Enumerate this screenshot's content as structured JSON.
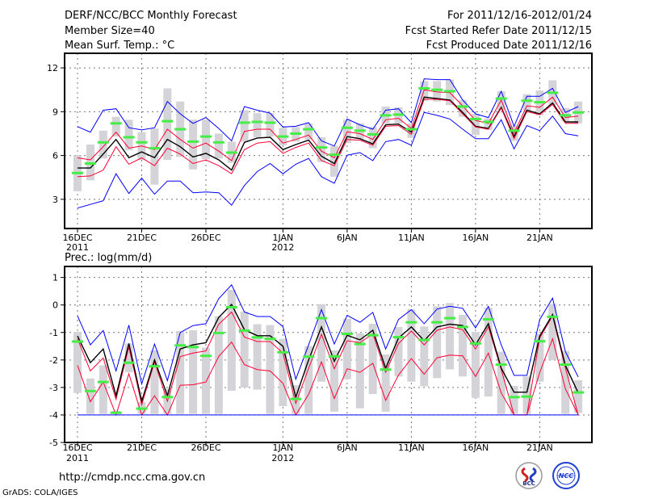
{
  "header": {
    "title": "DERF/NCC/BCC Monthly Forecast",
    "member_size": "Member Size=40",
    "variable_top": "Mean Surf. Temp.: °C",
    "forecast_period": "For 2011/12/16-2012/01/24",
    "start_date": "Fcst Started Refer Date 2011/12/15",
    "produced_date": "Fcst Produced Date 2011/12/16"
  },
  "footer": {
    "url": "http://cmdp.ncc.cma.gov.cn",
    "credit": "GrADS: COLA/IGES",
    "logo_bcc": "BCC",
    "logo_ncc": "NCC"
  },
  "colors": {
    "envelope": "#0000ff",
    "spread": "#ff0033",
    "mean": "#000000",
    "marker": "#44ee44",
    "box": "#d4d4d8"
  },
  "chart_data": [
    {
      "type": "line",
      "title": "Mean Surf. Temp.: °C",
      "ylim": [
        1,
        13
      ],
      "yticks": [
        3,
        6,
        9,
        12
      ],
      "ytick_labels": [
        "3",
        "6",
        "9",
        "12"
      ],
      "xtick_index": [
        0,
        5,
        10,
        16,
        21,
        26,
        31,
        36
      ],
      "xtick_labels": [
        "16DEC",
        "21DEC",
        "26DEC",
        "1JAN",
        "6JAN",
        "11JAN",
        "16JAN",
        "21JAN"
      ],
      "year_labels": [
        {
          "index": 0,
          "label": "2011"
        },
        {
          "index": 16,
          "label": "2012"
        }
      ],
      "grid": true,
      "series": [
        {
          "name": "max",
          "color": "#0000ff",
          "values": [
            7.98,
            7.6,
            9.1,
            9.2,
            7.9,
            7.75,
            7.9,
            9.7,
            8.85,
            8.2,
            8.6,
            7.85,
            7.0,
            9.35,
            9.1,
            8.9,
            7.95,
            8.0,
            8.25,
            7.0,
            6.65,
            8.5,
            8.1,
            7.8,
            9.1,
            9.2,
            8.25,
            11.25,
            11.2,
            11.2,
            9.8,
            8.85,
            8.6,
            10.4,
            8.0,
            10.05,
            10.05,
            10.6,
            8.95,
            9.35
          ]
        },
        {
          "name": "upper",
          "color": "#ff0033",
          "values": [
            5.84,
            5.7,
            6.6,
            7.6,
            6.5,
            6.65,
            6.4,
            7.8,
            7.1,
            6.5,
            6.85,
            6.3,
            5.65,
            7.65,
            7.8,
            7.8,
            6.85,
            7.1,
            7.4,
            6.3,
            5.84,
            7.62,
            7.5,
            7.1,
            8.45,
            8.55,
            7.85,
            10.5,
            10.35,
            10.3,
            9.4,
            8.4,
            8.2,
            9.8,
            7.55,
            9.4,
            9.3,
            10.0,
            8.6,
            8.7
          ]
        },
        {
          "name": "mean",
          "color": "#000000",
          "values": [
            5.14,
            5.14,
            6.1,
            7.1,
            5.85,
            6.25,
            5.85,
            7.1,
            6.6,
            5.9,
            6.15,
            5.7,
            5.0,
            6.9,
            7.2,
            7.25,
            6.4,
            6.75,
            7.05,
            5.95,
            5.45,
            7.3,
            7.15,
            6.8,
            8.1,
            8.15,
            7.6,
            10.0,
            9.9,
            9.8,
            8.95,
            8.0,
            7.85,
            9.3,
            7.3,
            9.1,
            8.85,
            9.6,
            8.3,
            8.3
          ]
        },
        {
          "name": "lower",
          "color": "#ff0033",
          "values": [
            4.55,
            4.6,
            5.0,
            6.6,
            5.4,
            5.84,
            5.3,
            6.5,
            6.1,
            5.45,
            5.7,
            5.3,
            4.75,
            6.4,
            6.85,
            6.95,
            6.15,
            6.55,
            6.85,
            5.65,
            5.3,
            7.1,
            7.05,
            6.7,
            8.0,
            8.05,
            7.45,
            9.85,
            9.85,
            9.75,
            8.85,
            7.95,
            7.8,
            9.25,
            7.15,
            9.0,
            8.8,
            9.5,
            8.2,
            8.2
          ]
        },
        {
          "name": "min",
          "color": "#0000ff",
          "values": [
            2.4,
            2.65,
            2.9,
            4.75,
            3.4,
            4.45,
            3.35,
            4.25,
            4.25,
            3.45,
            3.5,
            3.45,
            2.6,
            3.95,
            4.9,
            5.45,
            4.75,
            5.4,
            5.8,
            4.55,
            4.1,
            6.02,
            6.2,
            5.65,
            6.95,
            7.1,
            6.7,
            8.95,
            8.75,
            8.5,
            7.8,
            7.15,
            7.15,
            8.45,
            6.45,
            8.05,
            7.7,
            8.7,
            7.5,
            7.35
          ]
        }
      ],
      "markers": [
        4.8,
        5.45,
        6.9,
        8.2,
        7.25,
        6.9,
        6.5,
        8.35,
        7.8,
        6.95,
        7.3,
        6.9,
        6.2,
        8.25,
        8.3,
        8.25,
        7.3,
        7.5,
        7.8,
        6.55,
        6.05,
        7.9,
        7.7,
        7.45,
        8.75,
        8.8,
        7.8,
        10.6,
        10.5,
        10.4,
        9.35,
        8.5,
        8.3,
        9.9,
        7.7,
        9.75,
        9.65,
        10.3,
        8.75,
        8.95
      ],
      "boxes_high": [
        6.0,
        6.75,
        7.7,
        8.65,
        8.45,
        7.6,
        7.85,
        10.6,
        9.7,
        8.45,
        8.45,
        7.5,
        6.95,
        9.1,
        8.9,
        8.9,
        7.9,
        7.95,
        8.2,
        7.25,
        6.65,
        8.45,
        8.2,
        7.95,
        9.35,
        9.3,
        8.2,
        11.1,
        11.1,
        11.2,
        9.8,
        8.85,
        8.55,
        10.4,
        8.05,
        10.2,
        10.45,
        11.15,
        9.25,
        9.7
      ],
      "boxes_low": [
        3.55,
        4.3,
        5.8,
        7.3,
        6.35,
        5.7,
        4.0,
        5.7,
        5.9,
        5.05,
        5.75,
        5.8,
        5.5,
        6.95,
        7.25,
        7.3,
        6.7,
        6.95,
        7.1,
        5.55,
        4.55,
        6.85,
        7.15,
        6.5,
        8.2,
        8.2,
        7.2,
        9.75,
        9.7,
        9.45,
        8.65,
        7.4,
        7.75,
        9.1,
        7.0,
        9.0,
        8.75,
        9.45,
        8.35,
        8.2
      ]
    },
    {
      "type": "line",
      "title": "Prec.: log(mm/d)",
      "ylim": [
        -5,
        1.4
      ],
      "yticks": [
        -5,
        -4,
        -3,
        -2,
        -1,
        0,
        1
      ],
      "ytick_labels": [
        "-5",
        "-4",
        "-3",
        "-2",
        "-1",
        "0",
        "1"
      ],
      "xtick_index": [
        0,
        5,
        10,
        16,
        21,
        26,
        31,
        36
      ],
      "xtick_labels": [
        "16DEC",
        "21DEC",
        "26DEC",
        "1JAN",
        "6JAN",
        "11JAN",
        "16JAN",
        "21JAN"
      ],
      "year_labels": [
        {
          "index": 0,
          "label": "2011"
        },
        {
          "index": 16,
          "label": "2012"
        }
      ],
      "grid": true,
      "series": [
        {
          "name": "max",
          "color": "#0000ff",
          "values": [
            -0.4,
            -1.45,
            -0.93,
            -2.4,
            -0.73,
            -2.87,
            -1.42,
            -2.75,
            -1.0,
            -0.75,
            -0.68,
            0.23,
            0.73,
            -0.26,
            -0.42,
            -0.42,
            -0.78,
            -2.7,
            -1.45,
            -0.17,
            -1.42,
            -0.38,
            -0.63,
            -0.27,
            -1.6,
            -0.53,
            -0.17,
            -0.68,
            -0.15,
            -0.05,
            -0.12,
            -0.83,
            -0.05,
            -1.45,
            -2.56,
            -2.56,
            -0.53,
            0.25,
            -1.7,
            -2.62
          ]
        },
        {
          "name": "upper",
          "color": "#ff0033",
          "values": [
            -1.23,
            -2.4,
            -1.93,
            -3.43,
            -1.53,
            -3.63,
            -2.07,
            -3.5,
            -1.88,
            -1.75,
            -1.67,
            -0.7,
            -0.26,
            -1.17,
            -1.33,
            -1.33,
            -1.75,
            -3.58,
            -2.3,
            -1.07,
            -2.32,
            -1.3,
            -1.37,
            -1.05,
            -2.45,
            -1.4,
            -0.95,
            -1.45,
            -0.92,
            -0.8,
            -0.9,
            -1.6,
            -0.8,
            -2.35,
            -4.0,
            -4.0,
            -1.2,
            -0.4,
            -2.3,
            -4.0
          ]
        },
        {
          "name": "mean",
          "color": "#000000",
          "values": [
            -1.13,
            -2.1,
            -1.6,
            -3.3,
            -1.4,
            -3.5,
            -2.0,
            -3.3,
            -1.6,
            -1.45,
            -1.37,
            -0.45,
            0.02,
            -0.9,
            -1.12,
            -1.12,
            -1.5,
            -3.35,
            -2.0,
            -0.8,
            -2.05,
            -1.1,
            -1.27,
            -0.92,
            -2.3,
            -1.2,
            -0.8,
            -1.3,
            -0.8,
            -0.7,
            -0.75,
            -1.45,
            -0.68,
            -2.3,
            -3.17,
            -3.17,
            -1.13,
            -0.35,
            -2.2,
            -3.2
          ]
        },
        {
          "name": "lower",
          "color": "#ff0033",
          "values": [
            -2.2,
            -3.52,
            -2.8,
            -4.0,
            -2.5,
            -4.0,
            -3.3,
            -4.0,
            -2.92,
            -2.9,
            -2.8,
            -1.87,
            -1.35,
            -2.17,
            -2.35,
            -2.4,
            -2.85,
            -4.0,
            -3.25,
            -2.07,
            -3.4,
            -2.32,
            -2.45,
            -2.12,
            -3.47,
            -2.55,
            -1.95,
            -2.52,
            -1.92,
            -1.82,
            -1.85,
            -2.6,
            -1.75,
            -3.2,
            -4.0,
            -4.0,
            -2.45,
            -1.23,
            -3.05,
            -4.0
          ]
        },
        {
          "name": "min",
          "color": "#0000ff",
          "values": [
            -4,
            -4,
            -4,
            -4,
            -4,
            -4,
            -4,
            -4,
            -4,
            -4,
            -4,
            -4,
            -4,
            -4,
            -4,
            -4,
            -4,
            -4,
            -4,
            -4,
            -4,
            -4,
            -4,
            -4,
            -4,
            -4,
            -4,
            -4,
            -4,
            -4,
            -4,
            -4,
            -4,
            -4,
            -4,
            -4,
            -4,
            -4,
            -4,
            -4
          ]
        }
      ],
      "markers": [
        -1.33,
        -3.13,
        -2.8,
        -3.92,
        -2.1,
        -3.77,
        -2.23,
        -3.35,
        -1.47,
        -1.53,
        -1.85,
        -1.02,
        -0.08,
        -0.93,
        -1.18,
        -1.23,
        -1.72,
        -3.42,
        -1.88,
        -0.48,
        -1.87,
        -1.05,
        -1.42,
        -1.1,
        -2.35,
        -1.17,
        -0.63,
        -1.27,
        -0.63,
        -0.48,
        -0.8,
        -1.4,
        -0.52,
        -2.17,
        -3.35,
        -3.33,
        -1.32,
        -0.43,
        -2.17,
        -3.18
      ],
      "boxes_high": [
        -0.98,
        -2.67,
        -2.2,
        -3.85,
        -1.4,
        -3.53,
        -1.65,
        -3.05,
        -0.95,
        -0.92,
        -1.55,
        -0.41,
        0.55,
        -0.24,
        -0.7,
        -0.73,
        -1.23,
        -2.92,
        -1.5,
        0.03,
        -1.65,
        -0.5,
        -1.03,
        -0.68,
        -1.8,
        -0.8,
        -0.15,
        -0.78,
        -0.05,
        0.07,
        -0.36,
        -0.98,
        -0.1,
        -1.7,
        -2.94,
        -2.6,
        -1.05,
        0.04,
        -1.67,
        -2.74
      ],
      "boxes_low": [
        -3.2,
        -3.96,
        -3.96,
        -3.96,
        -2.45,
        -3.96,
        -3.96,
        -3.96,
        -3.96,
        -3.96,
        -3.96,
        -3.96,
        -3.12,
        -3.0,
        -3.08,
        -3.96,
        -3.68,
        -3.96,
        -3.96,
        -2.79,
        -3.88,
        -2.7,
        -3.76,
        -3.24,
        -3.88,
        -2.6,
        -2.79,
        -2.96,
        -2.66,
        -2.34,
        -2.6,
        -3.38,
        -3.33,
        -3.96,
        -3.96,
        -3.96,
        -2.79,
        -2.0,
        -3.96,
        -3.93
      ]
    }
  ]
}
